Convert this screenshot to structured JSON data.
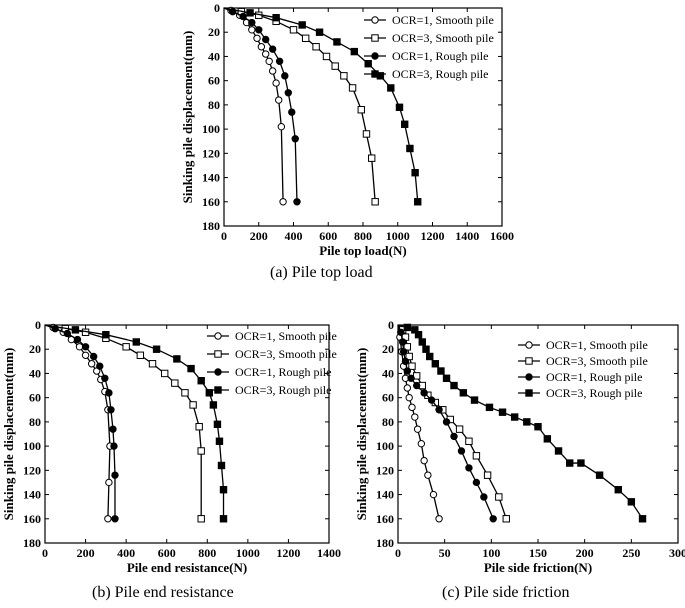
{
  "captions": [
    "(a) Pile top load",
    "(b) Pile end resistance",
    "(c) Pile side friction"
  ],
  "chart_data": [
    {
      "type": "line",
      "panel": "a",
      "xlabel": "Pile top load(N)",
      "ylabel": "Sinking pile displacement(mm)",
      "xlim": [
        0,
        1600
      ],
      "ylim": [
        0,
        180
      ],
      "y_inverted": true,
      "x_ticks": [
        0,
        200,
        400,
        600,
        800,
        1000,
        1200,
        1400,
        1600
      ],
      "y_ticks": [
        0,
        20,
        40,
        60,
        80,
        100,
        120,
        140,
        160,
        180
      ],
      "legend_position": "top-right",
      "series": [
        {
          "name": "OCR=1, Smooth pile",
          "marker": "open-circle",
          "x": [
            0,
            40,
            90,
            130,
            160,
            190,
            215,
            240,
            260,
            280,
            300,
            315,
            330,
            340
          ],
          "y": [
            0,
            2,
            6,
            12,
            18,
            25,
            32,
            38,
            44,
            52,
            62,
            76,
            98,
            160
          ]
        },
        {
          "name": "OCR=3, Smooth pile",
          "marker": "open-square",
          "x": [
            0,
            100,
            200,
            300,
            400,
            470,
            530,
            590,
            640,
            690,
            740,
            790,
            820,
            850,
            870
          ],
          "y": [
            0,
            3,
            6,
            11,
            18,
            25,
            32,
            40,
            48,
            56,
            66,
            84,
            104,
            124,
            160
          ]
        },
        {
          "name": "OCR=1, Rough pile",
          "marker": "filled-circle",
          "x": [
            0,
            50,
            110,
            160,
            200,
            240,
            280,
            320,
            350,
            370,
            390,
            410,
            420
          ],
          "y": [
            0,
            3,
            7,
            12,
            18,
            26,
            34,
            44,
            56,
            70,
            86,
            108,
            160
          ]
        },
        {
          "name": "OCR=3, Rough pile",
          "marker": "filled-square",
          "x": [
            0,
            150,
            300,
            450,
            550,
            650,
            750,
            830,
            900,
            960,
            1010,
            1040,
            1070,
            1100,
            1115
          ],
          "y": [
            0,
            4,
            8,
            14,
            20,
            28,
            36,
            46,
            56,
            66,
            82,
            96,
            116,
            136,
            160
          ]
        }
      ]
    },
    {
      "type": "line",
      "panel": "b",
      "xlabel": "Pile end resistance(N)",
      "ylabel": "Sinking pile displacement(mm)",
      "xlim": [
        0,
        1400
      ],
      "ylim": [
        0,
        180
      ],
      "y_inverted": true,
      "x_ticks": [
        0,
        200,
        400,
        600,
        800,
        1000,
        1200,
        1400
      ],
      "y_ticks": [
        0,
        20,
        40,
        60,
        80,
        100,
        120,
        140,
        160,
        180
      ],
      "legend_position": "top-right",
      "series": [
        {
          "name": "OCR=1, Smooth pile",
          "marker": "open-circle",
          "x": [
            0,
            40,
            90,
            130,
            170,
            200,
            230,
            255,
            275,
            295,
            310,
            320,
            315,
            310
          ],
          "y": [
            0,
            2,
            6,
            12,
            18,
            25,
            32,
            38,
            45,
            55,
            70,
            100,
            130,
            160
          ]
        },
        {
          "name": "OCR=3, Smooth pile",
          "marker": "open-square",
          "x": [
            0,
            100,
            200,
            300,
            400,
            470,
            530,
            590,
            640,
            690,
            730,
            760,
            770,
            770
          ],
          "y": [
            0,
            3,
            6,
            11,
            18,
            25,
            32,
            40,
            48,
            56,
            66,
            84,
            104,
            160
          ]
        },
        {
          "name": "OCR=1, Rough pile",
          "marker": "filled-circle",
          "x": [
            0,
            50,
            110,
            160,
            200,
            240,
            270,
            295,
            315,
            325,
            335,
            340,
            345,
            345
          ],
          "y": [
            0,
            3,
            7,
            12,
            18,
            26,
            34,
            44,
            56,
            70,
            86,
            100,
            124,
            160
          ]
        },
        {
          "name": "OCR=3, Rough pile",
          "marker": "filled-square",
          "x": [
            0,
            150,
            300,
            450,
            550,
            650,
            720,
            770,
            810,
            830,
            850,
            860,
            870,
            880,
            880
          ],
          "y": [
            0,
            4,
            8,
            14,
            20,
            28,
            36,
            46,
            56,
            66,
            82,
            96,
            116,
            136,
            160
          ]
        }
      ]
    },
    {
      "type": "line",
      "panel": "c",
      "xlabel": "Pile side friction(N)",
      "ylabel": "Sinking pile displacement(mm)",
      "xlim": [
        0,
        300
      ],
      "ylim": [
        0,
        180
      ],
      "y_inverted": true,
      "x_ticks": [
        0,
        50,
        100,
        150,
        200,
        250,
        300
      ],
      "y_ticks": [
        0,
        20,
        40,
        60,
        80,
        100,
        120,
        140,
        160,
        180
      ],
      "legend_position": "top-right",
      "series": [
        {
          "name": "OCR=1, Smooth pile",
          "marker": "open-circle",
          "x": [
            0,
            2,
            4,
            6,
            8,
            10,
            12,
            15,
            18,
            21,
            25,
            28,
            32,
            38,
            44
          ],
          "y": [
            0,
            10,
            22,
            34,
            44,
            52,
            60,
            68,
            76,
            86,
            98,
            112,
            124,
            140,
            160
          ]
        },
        {
          "name": "OCR=3, Smooth pile",
          "marker": "open-square",
          "x": [
            0,
            5,
            8,
            10,
            12,
            15,
            20,
            26,
            32,
            40,
            48,
            56,
            66,
            76,
            84,
            96,
            108,
            116
          ],
          "y": [
            0,
            4,
            10,
            18,
            26,
            34,
            42,
            50,
            58,
            64,
            70,
            78,
            86,
            96,
            108,
            124,
            142,
            160
          ]
        },
        {
          "name": "OCR=1, Rough pile",
          "marker": "filled-circle",
          "x": [
            0,
            3,
            5,
            6,
            8,
            10,
            14,
            20,
            28,
            36,
            44,
            52,
            60,
            68,
            76,
            84,
            92,
            102
          ],
          "y": [
            0,
            6,
            14,
            22,
            30,
            38,
            44,
            50,
            56,
            62,
            70,
            80,
            92,
            104,
            118,
            130,
            142,
            160
          ]
        },
        {
          "name": "OCR=3, Rough pile",
          "marker": "filled-square",
          "x": [
            0,
            10,
            18,
            22,
            26,
            30,
            34,
            40,
            46,
            52,
            60,
            70,
            82,
            98,
            112,
            125,
            138,
            150,
            160,
            172,
            184,
            196,
            216,
            236,
            250,
            262
          ],
          "y": [
            0,
            2,
            4,
            8,
            14,
            20,
            26,
            32,
            38,
            44,
            50,
            56,
            62,
            68,
            72,
            76,
            80,
            84,
            94,
            104,
            114,
            114,
            124,
            136,
            146,
            160
          ]
        }
      ]
    }
  ]
}
